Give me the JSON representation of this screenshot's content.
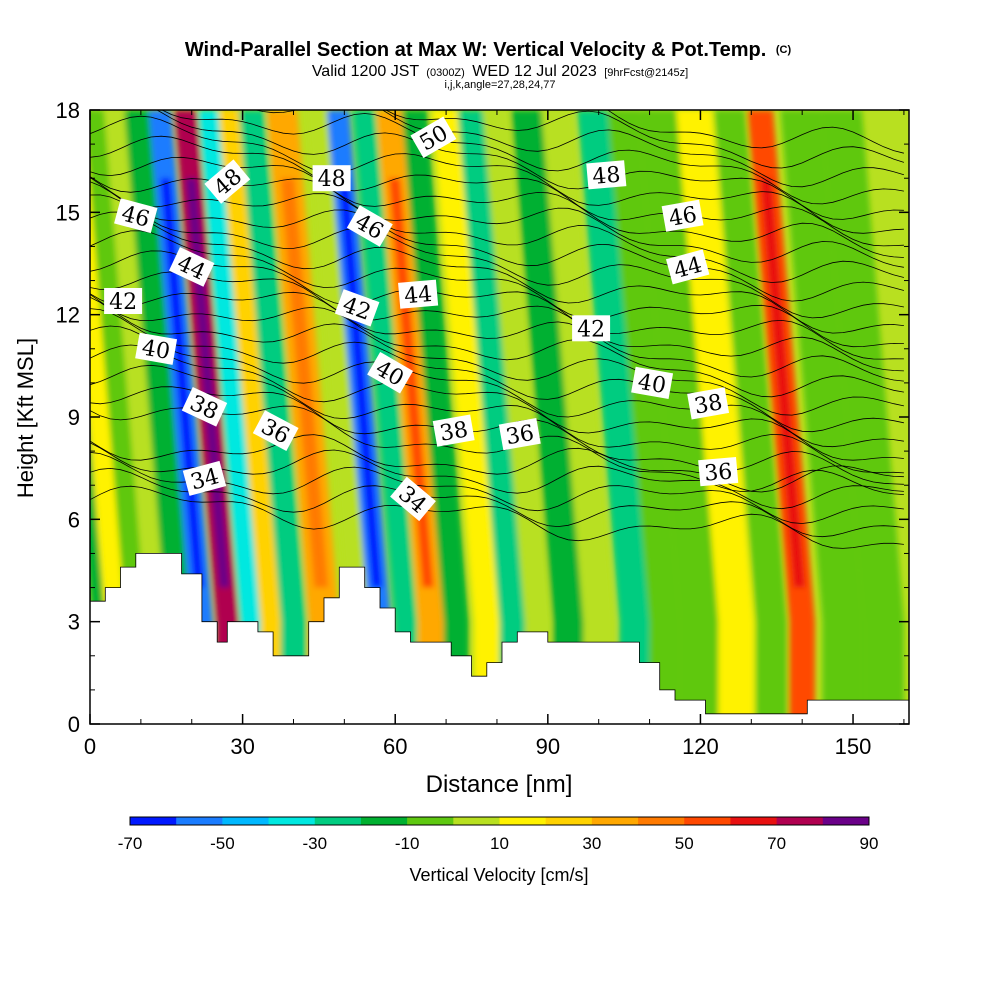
{
  "chart_data": {
    "type": "heatmap",
    "title": "Wind-Parallel Section at Max W: Vertical Velocity & Pot.Temp.",
    "title_mark": "(C)",
    "subtitle": {
      "prefix": "Valid 1200 JST",
      "utc": "(0300Z)",
      "date": "WED 12 Jul 2023",
      "forecast": "[9hrFcst@2145z]"
    },
    "grid_info": "i,j,k,angle=27,28,24,77",
    "xlabel": "Distance [nm]",
    "ylabel": "Height [Kft MSL]",
    "xlim": [
      0,
      161
    ],
    "ylim": [
      0,
      18
    ],
    "x_ticks": [
      "0",
      "30",
      "60",
      "90",
      "120",
      "150"
    ],
    "y_ticks": [
      "0",
      "3",
      "6",
      "9",
      "12",
      "15",
      "18"
    ],
    "colorbar": {
      "label": "Vertical Velocity [cm/s]",
      "tick_labels": [
        "-70",
        "-50",
        "-30",
        "-10",
        "10",
        "30",
        "50",
        "70",
        "90"
      ],
      "bounds": [
        -70,
        -60,
        -50,
        -40,
        -30,
        -20,
        -10,
        0,
        10,
        20,
        30,
        40,
        50,
        60,
        70,
        80,
        90
      ],
      "colors": [
        "#0018ff",
        "#1a7cff",
        "#00b8ff",
        "#00e8e0",
        "#00cc80",
        "#00b030",
        "#5ec810",
        "#b8e020",
        "#fff200",
        "#ffd200",
        "#ffa800",
        "#ff7a00",
        "#ff4800",
        "#e81010",
        "#b00050",
        "#6a0088"
      ]
    },
    "features": [
      {
        "x": 3,
        "width": 2.5,
        "w": -12
      },
      {
        "x": 6,
        "width": 3,
        "w": 15
      },
      {
        "x": 10,
        "width": 3,
        "w": -6
      },
      {
        "x": 14,
        "width": 3,
        "w": 8
      },
      {
        "x": 18,
        "width": 3,
        "w": -20
      },
      {
        "x": 22,
        "width": 2.2,
        "w": -58
      },
      {
        "x": 27,
        "width": 2.2,
        "w": 72
      },
      {
        "x": 32,
        "width": 2.5,
        "w": -32
      },
      {
        "x": 36,
        "width": 2.5,
        "w": 22
      },
      {
        "x": 40,
        "width": 2.5,
        "w": -22
      },
      {
        "x": 46,
        "width": 3,
        "w": 30
      },
      {
        "x": 53,
        "width": 2.2,
        "w": 8
      },
      {
        "x": 57,
        "width": 2.2,
        "w": -58
      },
      {
        "x": 62,
        "width": 2.2,
        "w": -28
      },
      {
        "x": 67,
        "width": 2.5,
        "w": 38
      },
      {
        "x": 72,
        "width": 2.5,
        "w": -12
      },
      {
        "x": 78,
        "width": 2.5,
        "w": 18
      },
      {
        "x": 83,
        "width": 2.5,
        "w": -22
      },
      {
        "x": 88,
        "width": 2.5,
        "w": 8
      },
      {
        "x": 94,
        "width": 3,
        "w": -15
      },
      {
        "x": 100,
        "width": 3,
        "w": 6
      },
      {
        "x": 107,
        "width": 3,
        "w": -28
      },
      {
        "x": 113,
        "width": 3,
        "w": -8
      },
      {
        "x": 120,
        "width": 4,
        "w": -5
      },
      {
        "x": 127,
        "width": 3.5,
        "w": 14
      },
      {
        "x": 134,
        "width": 3,
        "w": -10
      },
      {
        "x": 140,
        "width": 2.5,
        "w": 52
      },
      {
        "x": 148,
        "width": 4,
        "w": -10
      },
      {
        "x": 156,
        "width": 4,
        "w": -3
      }
    ],
    "terrain": [
      [
        0,
        3.6
      ],
      [
        3,
        3.6
      ],
      [
        3,
        4.0
      ],
      [
        6,
        4.0
      ],
      [
        6,
        4.6
      ],
      [
        9,
        4.6
      ],
      [
        9,
        5.0
      ],
      [
        18,
        5.0
      ],
      [
        18,
        4.4
      ],
      [
        22,
        4.4
      ],
      [
        22,
        3.0
      ],
      [
        25,
        3.0
      ],
      [
        25,
        2.4
      ],
      [
        27,
        2.4
      ],
      [
        27,
        3.0
      ],
      [
        33,
        3.0
      ],
      [
        33,
        2.7
      ],
      [
        36,
        2.7
      ],
      [
        36,
        2.0
      ],
      [
        43,
        2.0
      ],
      [
        43,
        3.0
      ],
      [
        46,
        3.0
      ],
      [
        46,
        3.7
      ],
      [
        49,
        3.7
      ],
      [
        49,
        4.6
      ],
      [
        54,
        4.6
      ],
      [
        54,
        4.0
      ],
      [
        57,
        4.0
      ],
      [
        57,
        3.4
      ],
      [
        60,
        3.4
      ],
      [
        60,
        2.7
      ],
      [
        63,
        2.7
      ],
      [
        63,
        2.4
      ],
      [
        71,
        2.4
      ],
      [
        71,
        2.0
      ],
      [
        75,
        2.0
      ],
      [
        75,
        1.4
      ],
      [
        78,
        1.4
      ],
      [
        78,
        1.8
      ],
      [
        81,
        1.8
      ],
      [
        81,
        2.4
      ],
      [
        84,
        2.4
      ],
      [
        84,
        2.7
      ],
      [
        90,
        2.7
      ],
      [
        90,
        2.4
      ],
      [
        108,
        2.4
      ],
      [
        108,
        1.8
      ],
      [
        112,
        1.8
      ],
      [
        112,
        1.0
      ],
      [
        115,
        1.0
      ],
      [
        115,
        0.7
      ],
      [
        121,
        0.7
      ],
      [
        121,
        0.3
      ],
      [
        141,
        0.3
      ],
      [
        141,
        0.7
      ],
      [
        161,
        0.7
      ]
    ],
    "theta_contours": [
      {
        "value": 34,
        "label": "34",
        "labels": [
          [
            22.5,
            7.2,
            -15
          ],
          [
            63.5,
            6.6,
            40
          ]
        ]
      },
      {
        "value": 36,
        "label": "36",
        "labels": [
          [
            36.5,
            8.6,
            28
          ],
          [
            84.5,
            8.5,
            -10
          ],
          [
            123.5,
            7.4,
            -5
          ]
        ]
      },
      {
        "value": 38,
        "label": "38",
        "labels": [
          [
            22.5,
            9.3,
            25
          ],
          [
            71.5,
            8.6,
            -10
          ],
          [
            121.5,
            9.4,
            -10
          ]
        ]
      },
      {
        "value": 40,
        "label": "40",
        "labels": [
          [
            13,
            11.0,
            10
          ],
          [
            59,
            10.3,
            30
          ],
          [
            110.5,
            10.0,
            10
          ]
        ]
      },
      {
        "value": 42,
        "label": "42",
        "labels": [
          [
            6.5,
            12.4,
            0
          ],
          [
            52.5,
            12.2,
            20
          ],
          [
            98.5,
            11.6,
            0
          ]
        ]
      },
      {
        "value": 44,
        "label": "44",
        "labels": [
          [
            20,
            13.4,
            25
          ],
          [
            64.5,
            12.6,
            -5
          ],
          [
            117.5,
            13.4,
            -15
          ]
        ]
      },
      {
        "value": 46,
        "label": "46",
        "labels": [
          [
            9,
            14.9,
            15
          ],
          [
            55,
            14.6,
            30
          ],
          [
            116.5,
            14.9,
            -10
          ]
        ]
      },
      {
        "value": 48,
        "label": "48",
        "labels": [
          [
            27,
            15.9,
            -40
          ],
          [
            47.5,
            16.0,
            0
          ],
          [
            101.5,
            16.1,
            -5
          ]
        ]
      },
      {
        "value": 50,
        "label": "50",
        "labels": [
          [
            67.5,
            17.2,
            -30
          ]
        ]
      }
    ]
  }
}
